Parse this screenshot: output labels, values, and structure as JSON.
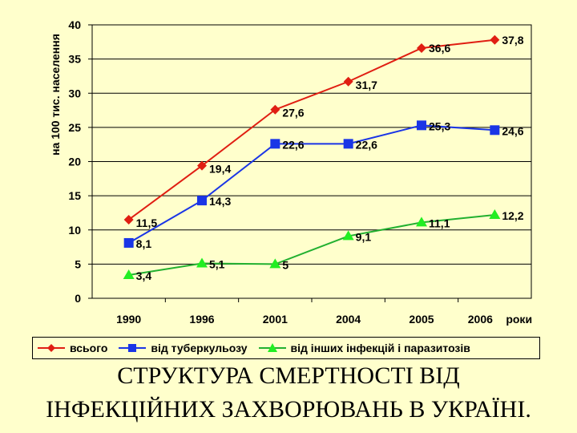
{
  "chart_data": {
    "type": "line",
    "ylabel": "на 100 тис. населення",
    "categories": [
      "1990",
      "1996",
      "2001",
      "2004",
      "2005",
      "2006"
    ],
    "x_unit_label": "роки",
    "ylim": [
      0,
      40
    ],
    "yticks": [
      0,
      5,
      10,
      15,
      20,
      25,
      30,
      35,
      40
    ],
    "grid": true,
    "legend_position": "bottom",
    "series": [
      {
        "name": "всього",
        "color": "#E01E12",
        "marker": "diamond",
        "values": [
          11.5,
          19.4,
          27.6,
          31.7,
          36.6,
          37.8
        ],
        "labels": [
          "11,5",
          "19,4",
          "27,6",
          "31,7",
          "36,6",
          "37,8"
        ]
      },
      {
        "name": "від туберкульозу",
        "color": "#1A35E6",
        "marker": "square",
        "values": [
          8.1,
          14.3,
          22.6,
          22.6,
          25.3,
          24.6
        ],
        "labels": [
          "8,1",
          "14,3",
          "22,6",
          "22,6",
          "25,3",
          "24,6"
        ]
      },
      {
        "name": "від інших інфекцій і паразитозів",
        "color": "#22B030",
        "marker": "triangle",
        "values": [
          3.4,
          5.1,
          5,
          9.1,
          11.1,
          12.2
        ],
        "labels": [
          "3,4",
          "5,1",
          "5",
          "9,1",
          "11,1",
          "12,2"
        ]
      }
    ]
  },
  "caption": {
    "line1": "СТРУКТУРА СМЕРТНОСТІ ВІД",
    "line2": "ІНФЕКЦІЙНИХ ЗАХВОРЮВАНЬ В УКРАЇНІ."
  }
}
